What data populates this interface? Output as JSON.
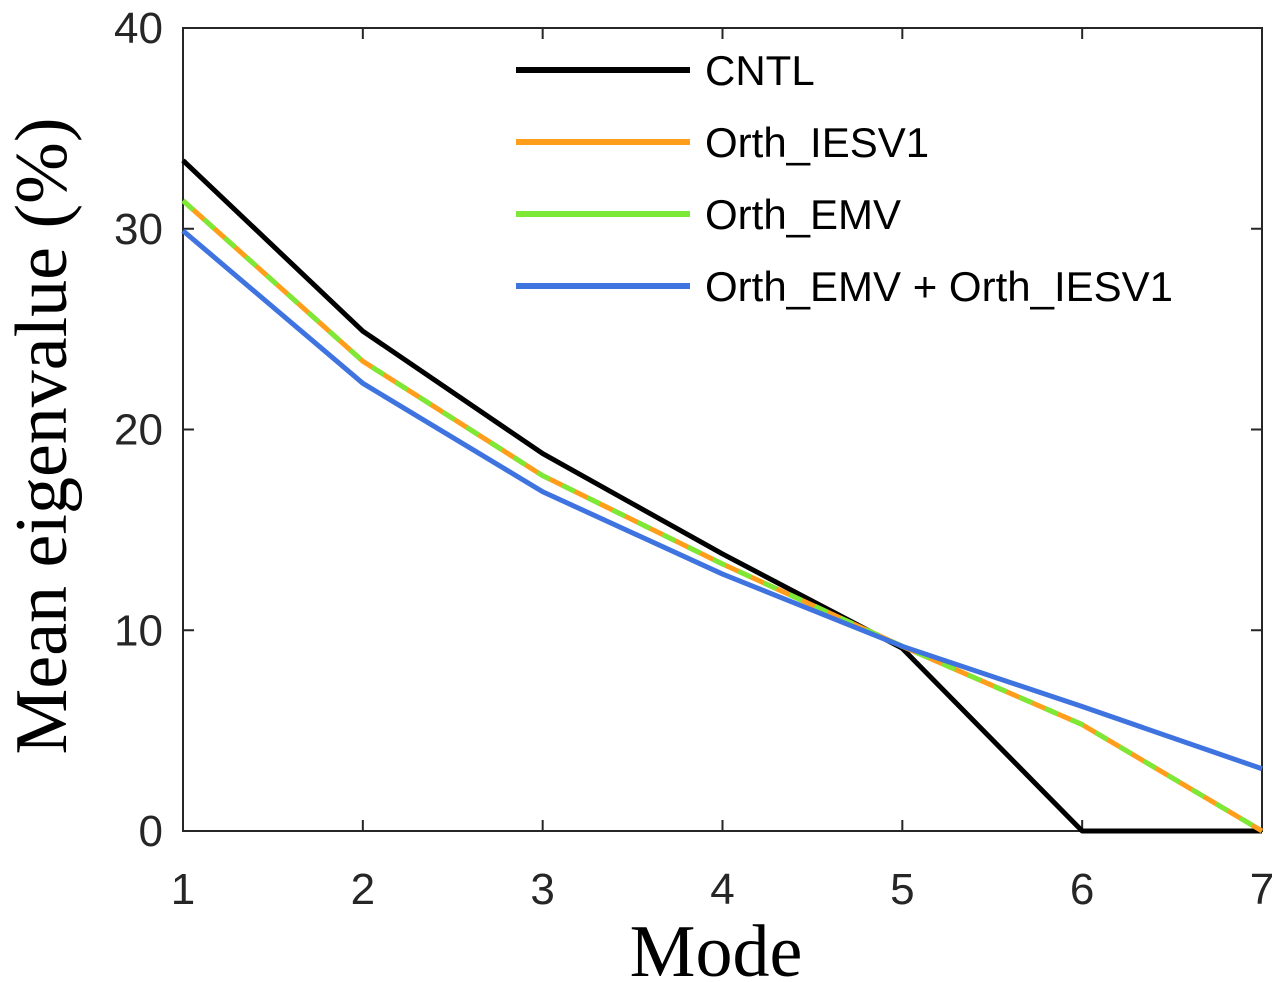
{
  "chart_data": {
    "type": "line",
    "title": "",
    "xlabel": "Mode",
    "ylabel": "Mean eigenvalue (%)",
    "x": [
      1,
      2,
      3,
      4,
      5,
      6,
      7
    ],
    "xlim": [
      1,
      7
    ],
    "ylim": [
      0,
      40
    ],
    "xticks": [
      "1",
      "2",
      "3",
      "4",
      "5",
      "6",
      "7"
    ],
    "yticks": [
      "0",
      "10",
      "20",
      "30",
      "40"
    ],
    "grid": false,
    "legend_position": "top-right",
    "series": [
      {
        "name": "CNTL",
        "color": "#000000",
        "values": [
          33.4,
          24.9,
          18.8,
          13.8,
          9.1,
          0.0,
          0.0
        ]
      },
      {
        "name": "Orth_IESV1",
        "color": "#ff9e1b",
        "values": [
          31.4,
          23.4,
          17.7,
          13.3,
          9.2,
          5.3,
          0.0
        ]
      },
      {
        "name": "Orth_EMV",
        "color": "#7de835",
        "values": [
          31.4,
          23.4,
          17.7,
          13.3,
          9.2,
          5.3,
          0.0
        ]
      },
      {
        "name": "Orth_EMV + Orth_IESV1",
        "color": "#3f74e0",
        "values": [
          29.9,
          22.3,
          16.9,
          12.8,
          9.2,
          6.2,
          3.1
        ]
      }
    ]
  }
}
